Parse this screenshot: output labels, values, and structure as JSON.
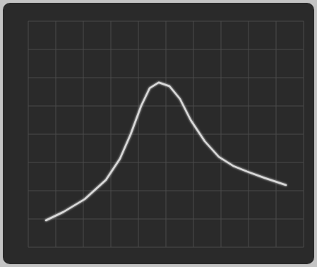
{
  "chart_data": {
    "type": "line",
    "x": [
      0.64,
      1.28,
      2.05,
      2.82,
      3.33,
      3.72,
      4.1,
      4.41,
      4.74,
      5.13,
      5.51,
      5.9,
      6.41,
      6.92,
      7.44,
      7.95,
      8.59,
      9.36
    ],
    "values": [
      0.95,
      1.25,
      1.7,
      2.38,
      3.13,
      4.0,
      5.0,
      5.63,
      5.83,
      5.7,
      5.25,
      4.5,
      3.75,
      3.2,
      2.88,
      2.68,
      2.45,
      2.2
    ],
    "color": "#d9d9d9",
    "xlim": [
      0,
      10
    ],
    "xticks": [
      0,
      1,
      2,
      3,
      4,
      5,
      6,
      7,
      8,
      9,
      10
    ],
    "ylim": [
      0,
      8
    ],
    "yticks": [
      0,
      1,
      2,
      3,
      4,
      5,
      6,
      7,
      8
    ],
    "grid": true,
    "tick_labels": false
  }
}
